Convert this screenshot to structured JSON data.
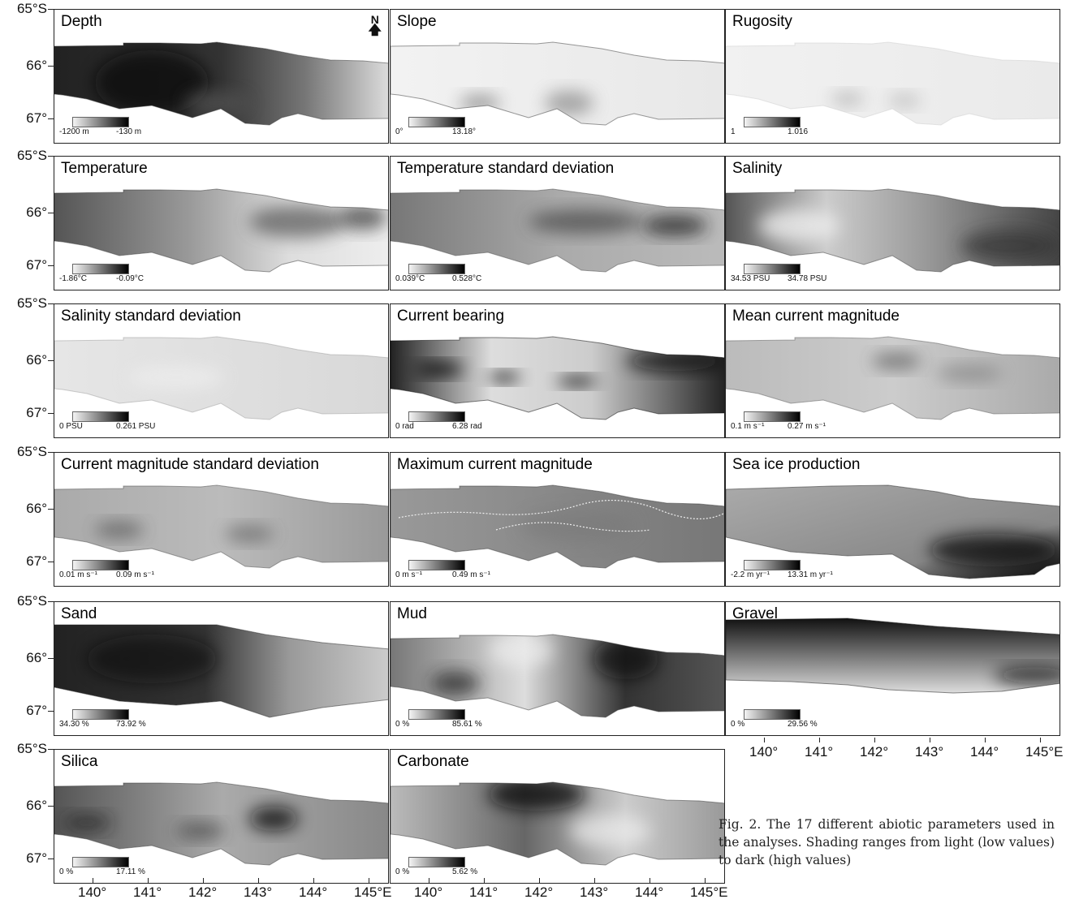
{
  "panels": [
    {
      "title": "Depth",
      "min": "-1200 m",
      "max": "-130 m",
      "style": "depth"
    },
    {
      "title": "Slope",
      "min": "0°",
      "max": "13.18°",
      "style": "slope"
    },
    {
      "title": "Rugosity",
      "min": "1",
      "max": "1.016",
      "style": "rugosity"
    },
    {
      "title": "Temperature",
      "min": "-1.86°C",
      "max": "-0.09°C",
      "style": "temperature"
    },
    {
      "title": "Temperature standard deviation",
      "min": "0.039°C",
      "max": "0.528°C",
      "style": "tempsd"
    },
    {
      "title": "Salinity",
      "min": "34.53 PSU",
      "max": "34.78 PSU",
      "style": "salinity"
    },
    {
      "title": "Salinity standard deviation",
      "min": "0 PSU",
      "max": "0.261 PSU",
      "style": "salsd"
    },
    {
      "title": "Current bearing",
      "min": "0 rad",
      "max": "6.28 rad",
      "style": "bearing"
    },
    {
      "title": "Mean current magnitude",
      "min": "0.1 m s⁻¹",
      "max": "0.27 m s⁻¹",
      "style": "meancur"
    },
    {
      "title": "Current magnitude standard deviation",
      "min": "0.01 m s⁻¹",
      "max": "0.09 m s⁻¹",
      "style": "cursd"
    },
    {
      "title": "Maximum current magnitude",
      "min": "0 m s⁻¹",
      "max": "0.49 m s⁻¹",
      "style": "maxcur"
    },
    {
      "title": "Sea ice production",
      "min": "-2.2 m yr⁻¹",
      "max": "13.31 m yr⁻¹",
      "style": "seaice"
    },
    {
      "title": "Sand",
      "min": "34.30 %",
      "max": "73.92 %",
      "style": "sand"
    },
    {
      "title": "Mud",
      "min": "0 %",
      "max": "85.61 %",
      "style": "mud"
    },
    {
      "title": "Gravel",
      "min": "0 %",
      "max": "29.56 %",
      "style": "gravel"
    },
    {
      "title": "Silica",
      "min": "0 %",
      "max": "17.11 %",
      "style": "silica"
    },
    {
      "title": "Carbonate",
      "min": "0 %",
      "max": "5.62 %",
      "style": "carbonate"
    }
  ],
  "north_label": "N",
  "lat_labels": [
    "65°S",
    "66°",
    "67°"
  ],
  "lon_labels": [
    "140°",
    "141°",
    "142°",
    "143°",
    "144°",
    "145°E"
  ],
  "caption": "Fig. 2. The 17 different abiotic parameters used in the analyses. Shading ranges from light (low values) to dark (high values)"
}
